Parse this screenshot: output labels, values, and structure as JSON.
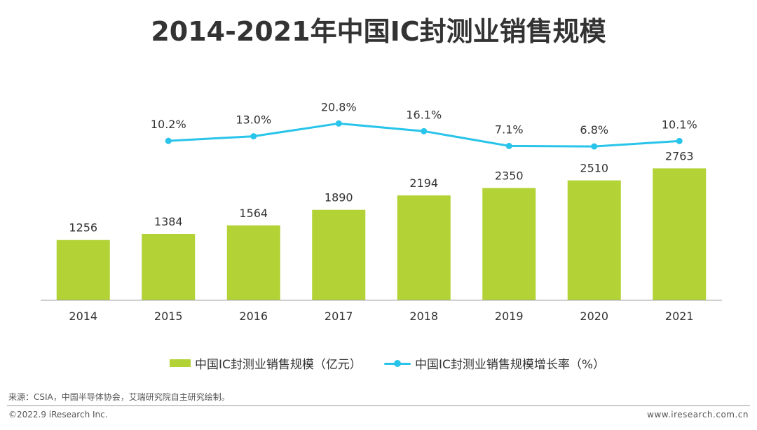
{
  "title": "2014-2021年中国IC封测业销售规模",
  "chart_data": {
    "type": "bar",
    "categories": [
      "2014",
      "2015",
      "2016",
      "2017",
      "2018",
      "2019",
      "2020",
      "2021"
    ],
    "series": [
      {
        "name": "中国IC封测业销售规模（亿元）",
        "type": "bar",
        "values": [
          1256,
          1384,
          1564,
          1890,
          2194,
          2350,
          2510,
          2763
        ],
        "labels": [
          "1256",
          "1384",
          "1564",
          "1890",
          "2194",
          "2350",
          "2510",
          "2763"
        ],
        "color": "#b2d235"
      },
      {
        "name": "中国IC封测业销售规模增长率（%）",
        "type": "line",
        "values": [
          null,
          10.2,
          13.0,
          20.8,
          16.1,
          7.1,
          6.8,
          10.1
        ],
        "labels": [
          "",
          "10.2%",
          "13.0%",
          "20.8%",
          "16.1%",
          "7.1%",
          "6.8%",
          "10.1%"
        ],
        "color": "#29c4ea"
      }
    ],
    "bar_ylim": [
      0,
      3300
    ],
    "line_ylim": [
      -40,
      35
    ],
    "grid": false,
    "legend_position": "bottom"
  },
  "footer": {
    "source": "来源：CSIA，中国半导体协会，艾瑞研究院自主研究绘制。",
    "copyright": "©2022.9 iResearch Inc.",
    "site": "www.iresearch.com.cn"
  }
}
